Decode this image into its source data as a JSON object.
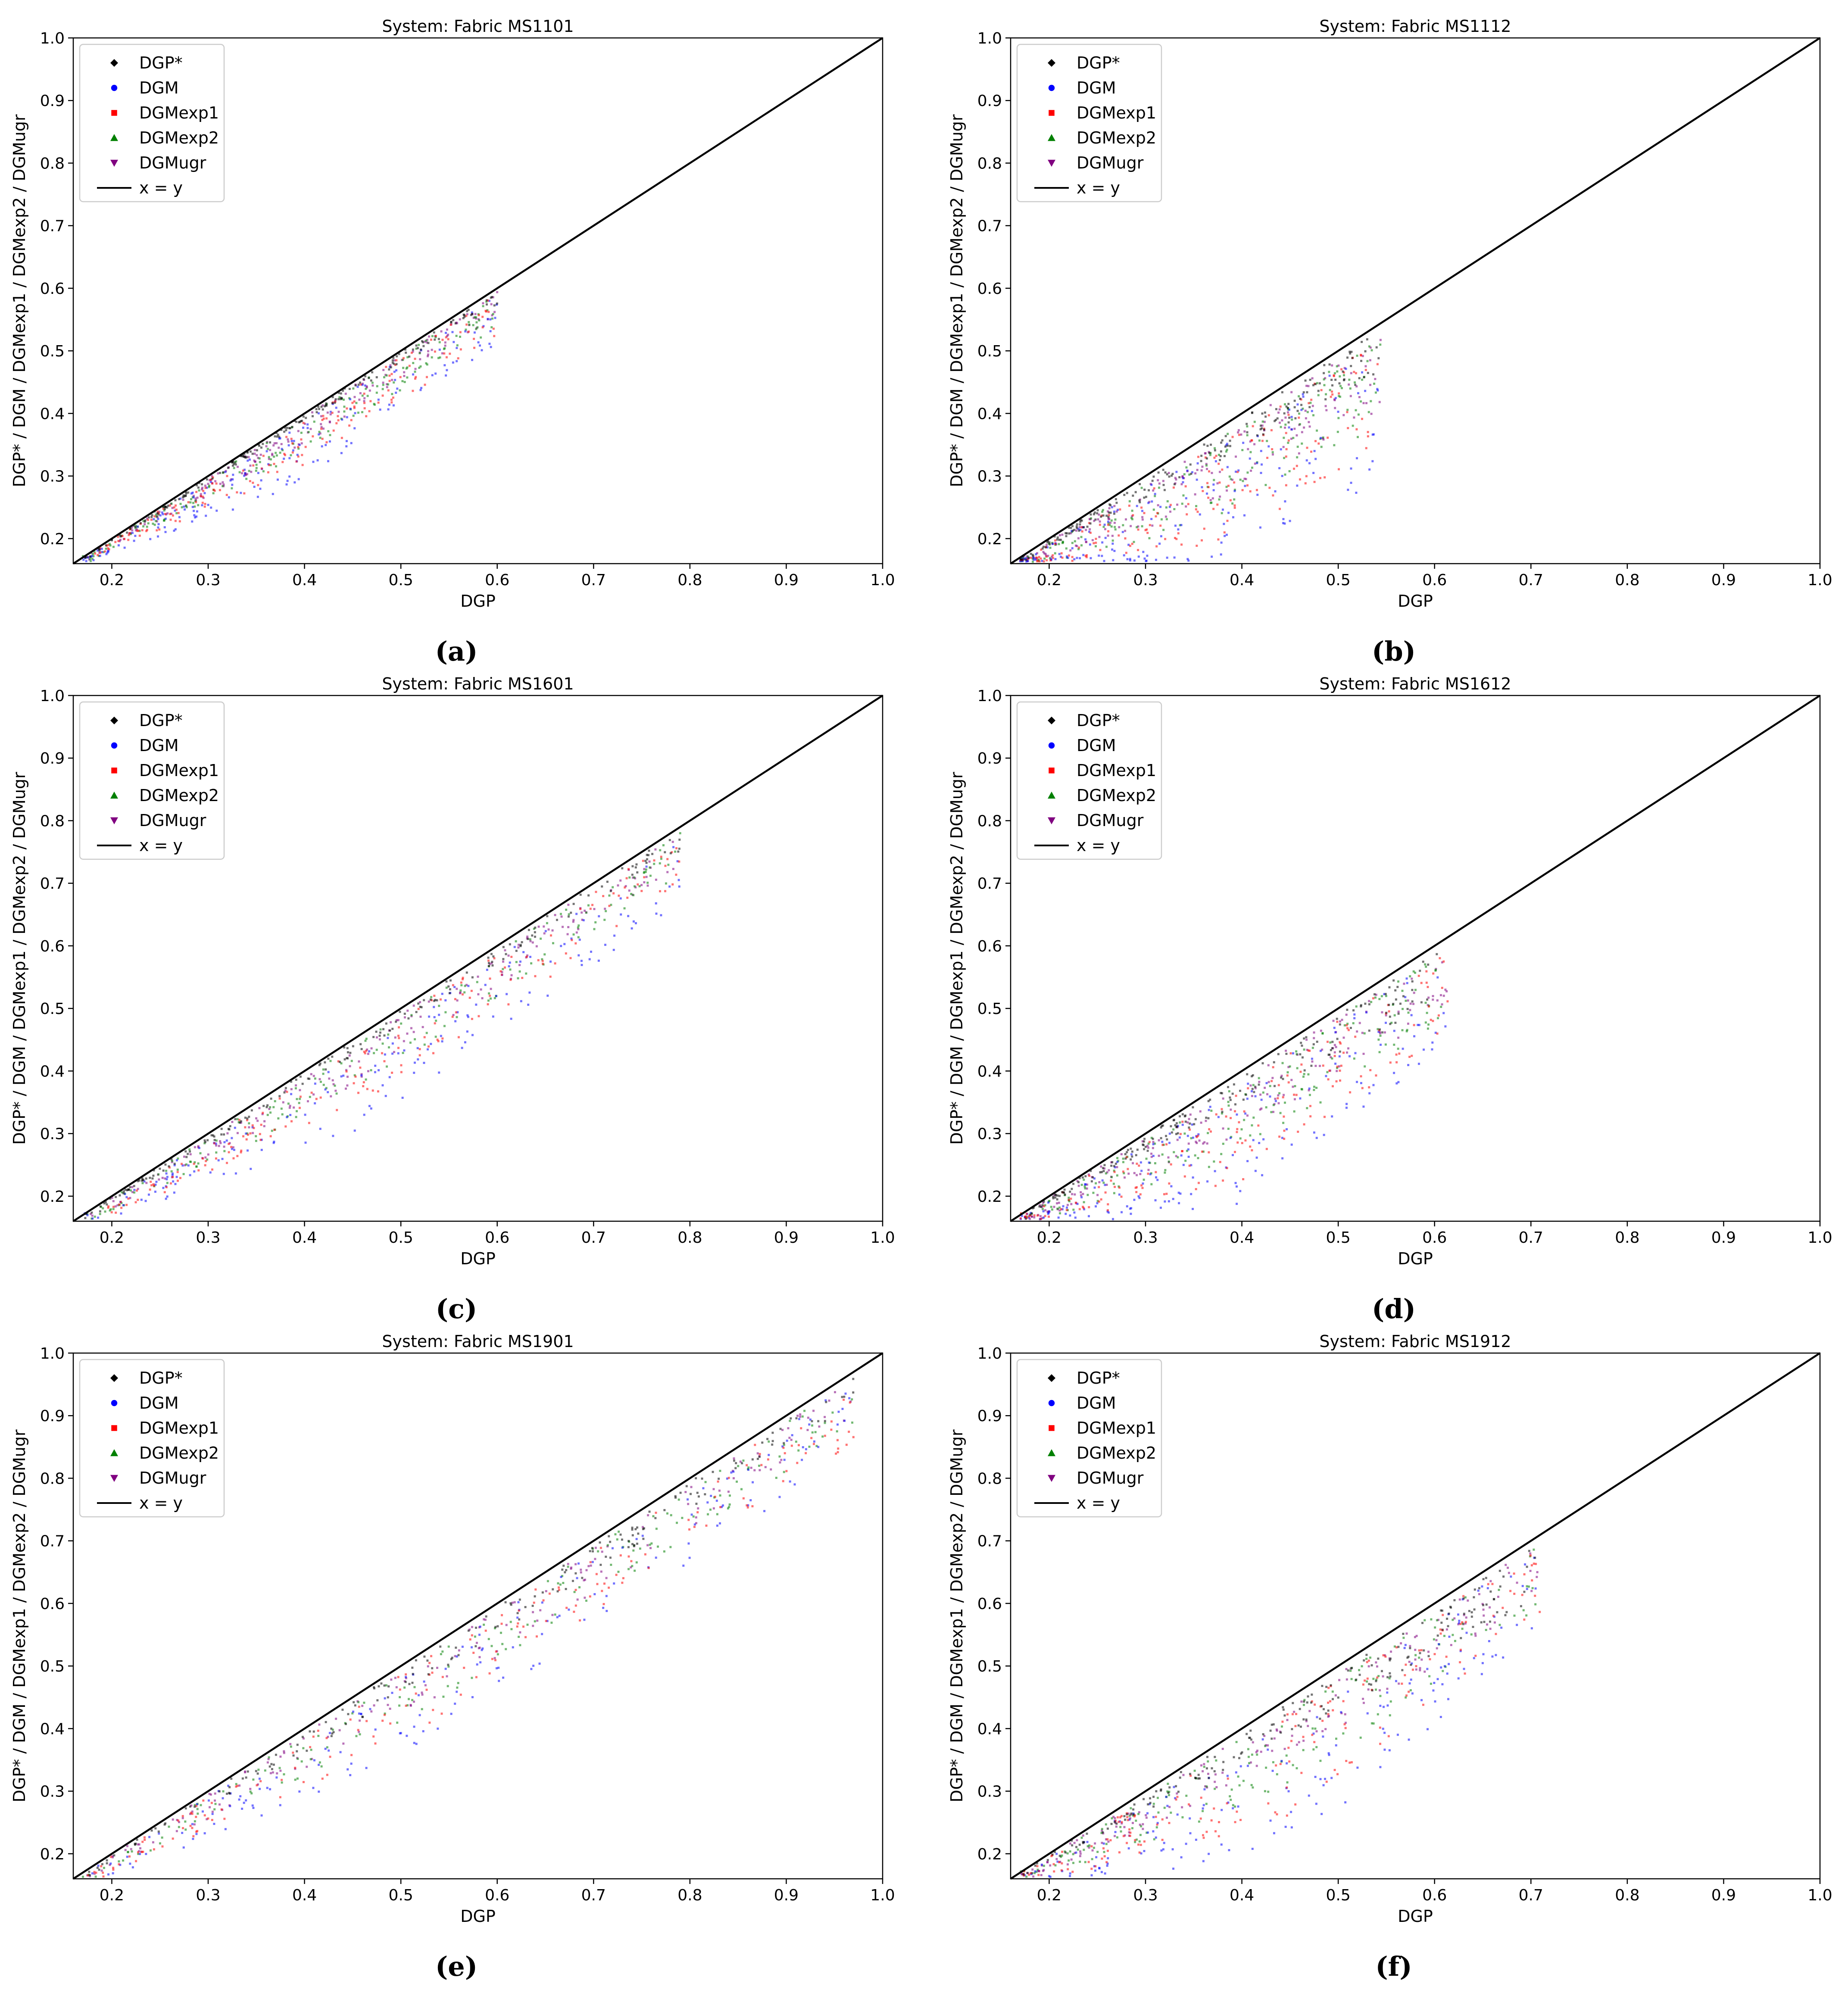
{
  "figure": {
    "x_axis_label": "DGP",
    "y_axis_label": "DGP* / DGM / DGMexp1 / DGMexp2 / DGMugr",
    "legend_entries": [
      {
        "label": "DGP*",
        "color": "#000000",
        "marker": "diamond"
      },
      {
        "label": "DGM",
        "color": "#0000ff",
        "marker": "circle"
      },
      {
        "label": "DGMexp1",
        "color": "#ff0000",
        "marker": "square"
      },
      {
        "label": "DGMexp2",
        "color": "#008000",
        "marker": "triangle-up"
      },
      {
        "label": "DGMugr",
        "color": "#800080",
        "marker": "triangle-down"
      },
      {
        "label": "x = y",
        "color": "#000000",
        "marker": "line"
      }
    ]
  },
  "chart_data": [
    {
      "type": "scatter",
      "title": "System: Fabric MS1101",
      "caption": "(a)",
      "xlabel": "DGP",
      "ylabel": "DGP* / DGM / DGMexp1 / DGMexp2 / DGMugr",
      "xlim": [
        0.16,
        1.0
      ],
      "ylim": [
        0.16,
        1.0
      ],
      "xticks": [
        "0.2",
        "0.3",
        "0.4",
        "0.5",
        "0.6",
        "0.7",
        "0.8",
        "0.9",
        "1.0"
      ],
      "yticks": [
        "0.2",
        "0.3",
        "0.4",
        "0.5",
        "0.6",
        "0.7",
        "0.8",
        "0.9",
        "1.0"
      ],
      "legend_position": "upper-left",
      "reference_line": "x = y",
      "dgp_max": 0.6,
      "series": [
        {
          "name": "DGP*",
          "gap_vs_dgp": [
            [
              0.2,
              0.005
            ],
            [
              0.4,
              0.01
            ],
            [
              0.6,
              0.02
            ]
          ]
        },
        {
          "name": "DGM",
          "gap_vs_dgp": [
            [
              0.2,
              0.02
            ],
            [
              0.4,
              0.09
            ],
            [
              0.6,
              0.07
            ]
          ]
        },
        {
          "name": "DGMexp1",
          "gap_vs_dgp": [
            [
              0.2,
              0.015
            ],
            [
              0.4,
              0.07
            ],
            [
              0.6,
              0.06
            ]
          ]
        },
        {
          "name": "DGMexp2",
          "gap_vs_dgp": [
            [
              0.2,
              0.012
            ],
            [
              0.4,
              0.05
            ],
            [
              0.6,
              0.05
            ]
          ]
        },
        {
          "name": "DGMugr",
          "gap_vs_dgp": [
            [
              0.2,
              0.01
            ],
            [
              0.4,
              0.04
            ],
            [
              0.6,
              0.04
            ]
          ]
        }
      ]
    },
    {
      "type": "scatter",
      "title": "System: Fabric MS1112",
      "caption": "(b)",
      "xlabel": "DGP",
      "ylabel": "DGP* / DGM / DGMexp1 / DGMexp2 / DGMugr",
      "xlim": [
        0.16,
        1.0
      ],
      "ylim": [
        0.16,
        1.0
      ],
      "xticks": [
        "0.2",
        "0.3",
        "0.4",
        "0.5",
        "0.6",
        "0.7",
        "0.8",
        "0.9",
        "1.0"
      ],
      "yticks": [
        "0.2",
        "0.3",
        "0.4",
        "0.5",
        "0.6",
        "0.7",
        "0.8",
        "0.9",
        "1.0"
      ],
      "legend_position": "upper-left",
      "reference_line": "x = y",
      "dgp_max": 0.545,
      "series": [
        {
          "name": "DGP*",
          "gap_vs_dgp": [
            [
              0.2,
              0.01
            ],
            [
              0.35,
              0.04
            ],
            [
              0.54,
              0.06
            ]
          ]
        },
        {
          "name": "DGM",
          "gap_vs_dgp": [
            [
              0.2,
              0.04
            ],
            [
              0.35,
              0.17
            ],
            [
              0.54,
              0.2
            ]
          ]
        },
        {
          "name": "DGMexp1",
          "gap_vs_dgp": [
            [
              0.2,
              0.035
            ],
            [
              0.35,
              0.14
            ],
            [
              0.54,
              0.17
            ]
          ]
        },
        {
          "name": "DGMexp2",
          "gap_vs_dgp": [
            [
              0.2,
              0.03
            ],
            [
              0.35,
              0.11
            ],
            [
              0.54,
              0.13
            ]
          ]
        },
        {
          "name": "DGMugr",
          "gap_vs_dgp": [
            [
              0.2,
              0.025
            ],
            [
              0.35,
              0.09
            ],
            [
              0.54,
              0.11
            ]
          ]
        }
      ]
    },
    {
      "type": "scatter",
      "title": "System: Fabric MS1601",
      "caption": "(c)",
      "xlabel": "DGP",
      "ylabel": "DGP* / DGM / DGMexp1 / DGMexp2 / DGMugr",
      "xlim": [
        0.16,
        1.0
      ],
      "ylim": [
        0.16,
        1.0
      ],
      "xticks": [
        "0.2",
        "0.3",
        "0.4",
        "0.5",
        "0.6",
        "0.7",
        "0.8",
        "0.9",
        "1.0"
      ],
      "yticks": [
        "0.2",
        "0.3",
        "0.4",
        "0.5",
        "0.6",
        "0.7",
        "0.8",
        "0.9",
        "1.0"
      ],
      "legend_position": "upper-left",
      "reference_line": "x = y",
      "dgp_max": 0.79,
      "series": [
        {
          "name": "DGP*",
          "gap_vs_dgp": [
            [
              0.2,
              0.01
            ],
            [
              0.45,
              0.02
            ],
            [
              0.79,
              0.03
            ]
          ]
        },
        {
          "name": "DGM",
          "gap_vs_dgp": [
            [
              0.2,
              0.03
            ],
            [
              0.45,
              0.12
            ],
            [
              0.79,
              0.1
            ]
          ]
        },
        {
          "name": "DGMexp1",
          "gap_vs_dgp": [
            [
              0.2,
              0.025
            ],
            [
              0.45,
              0.09
            ],
            [
              0.79,
              0.08
            ]
          ]
        },
        {
          "name": "DGMexp2",
          "gap_vs_dgp": [
            [
              0.2,
              0.02
            ],
            [
              0.45,
              0.07
            ],
            [
              0.79,
              0.06
            ]
          ]
        },
        {
          "name": "DGMugr",
          "gap_vs_dgp": [
            [
              0.2,
              0.02
            ],
            [
              0.45,
              0.06
            ],
            [
              0.79,
              0.05
            ]
          ]
        }
      ]
    },
    {
      "type": "scatter",
      "title": "System: Fabric MS1612",
      "caption": "(d)",
      "xlabel": "DGP",
      "ylabel": "DGP* / DGM / DGMexp1 / DGMexp2 / DGMugr",
      "xlim": [
        0.16,
        1.0
      ],
      "ylim": [
        0.16,
        1.0
      ],
      "xticks": [
        "0.2",
        "0.3",
        "0.4",
        "0.5",
        "0.6",
        "0.7",
        "0.8",
        "0.9",
        "1.0"
      ],
      "yticks": [
        "0.2",
        "0.3",
        "0.4",
        "0.5",
        "0.6",
        "0.7",
        "0.8",
        "0.9",
        "1.0"
      ],
      "legend_position": "upper-left",
      "reference_line": "x = y",
      "dgp_max": 0.615,
      "series": [
        {
          "name": "DGP*",
          "gap_vs_dgp": [
            [
              0.2,
              0.01
            ],
            [
              0.4,
              0.04
            ],
            [
              0.61,
              0.08
            ]
          ]
        },
        {
          "name": "DGM",
          "gap_vs_dgp": [
            [
              0.2,
              0.04
            ],
            [
              0.4,
              0.17
            ],
            [
              0.61,
              0.14
            ]
          ]
        },
        {
          "name": "DGMexp1",
          "gap_vs_dgp": [
            [
              0.2,
              0.035
            ],
            [
              0.4,
              0.14
            ],
            [
              0.61,
              0.12
            ]
          ]
        },
        {
          "name": "DGMexp2",
          "gap_vs_dgp": [
            [
              0.2,
              0.03
            ],
            [
              0.4,
              0.11
            ],
            [
              0.61,
              0.1
            ]
          ]
        },
        {
          "name": "DGMugr",
          "gap_vs_dgp": [
            [
              0.2,
              0.025
            ],
            [
              0.4,
              0.08
            ],
            [
              0.61,
              0.09
            ]
          ]
        }
      ]
    },
    {
      "type": "scatter",
      "title": "System: Fabric MS1901",
      "caption": "(e)",
      "xlabel": "DGP",
      "ylabel": "DGP* / DGM / DGMexp1 / DGMexp2 / DGMugr",
      "xlim": [
        0.16,
        1.0
      ],
      "ylim": [
        0.16,
        1.0
      ],
      "xticks": [
        "0.2",
        "0.3",
        "0.4",
        "0.5",
        "0.6",
        "0.7",
        "0.8",
        "0.9",
        "1.0"
      ],
      "yticks": [
        "0.2",
        "0.3",
        "0.4",
        "0.5",
        "0.6",
        "0.7",
        "0.8",
        "0.9",
        "1.0"
      ],
      "legend_position": "upper-left",
      "reference_line": "x = y",
      "dgp_max": 0.97,
      "series": [
        {
          "name": "DGP*",
          "gap_vs_dgp": [
            [
              0.2,
              0.01
            ],
            [
              0.5,
              0.04
            ],
            [
              0.97,
              0.04
            ]
          ]
        },
        {
          "name": "DGM",
          "gap_vs_dgp": [
            [
              0.2,
              0.03
            ],
            [
              0.5,
              0.12
            ],
            [
              0.97,
              0.1
            ]
          ]
        },
        {
          "name": "DGMexp1",
          "gap_vs_dgp": [
            [
              0.2,
              0.025
            ],
            [
              0.5,
              0.1
            ],
            [
              0.97,
              0.09
            ]
          ]
        },
        {
          "name": "DGMexp2",
          "gap_vs_dgp": [
            [
              0.2,
              0.02
            ],
            [
              0.5,
              0.08
            ],
            [
              0.97,
              0.07
            ]
          ]
        },
        {
          "name": "DGMugr",
          "gap_vs_dgp": [
            [
              0.2,
              0.02
            ],
            [
              0.5,
              0.07
            ],
            [
              0.97,
              0.06
            ]
          ]
        }
      ]
    },
    {
      "type": "scatter",
      "title": "System: Fabric MS1912",
      "caption": "(f)",
      "xlabel": "DGP",
      "ylabel": "DGP* / DGM / DGMexp1 / DGMexp2 / DGMugr",
      "xlim": [
        0.16,
        1.0
      ],
      "ylim": [
        0.16,
        1.0
      ],
      "xticks": [
        "0.2",
        "0.3",
        "0.4",
        "0.5",
        "0.6",
        "0.7",
        "0.8",
        "0.9",
        "1.0"
      ],
      "yticks": [
        "0.2",
        "0.3",
        "0.4",
        "0.5",
        "0.6",
        "0.7",
        "0.8",
        "0.9",
        "1.0"
      ],
      "legend_position": "upper-left",
      "reference_line": "x = y",
      "dgp_max": 0.71,
      "series": [
        {
          "name": "DGP*",
          "gap_vs_dgp": [
            [
              0.2,
              0.01
            ],
            [
              0.45,
              0.05
            ],
            [
              0.71,
              0.08
            ]
          ]
        },
        {
          "name": "DGM",
          "gap_vs_dgp": [
            [
              0.2,
              0.04
            ],
            [
              0.45,
              0.2
            ],
            [
              0.71,
              0.12
            ]
          ]
        },
        {
          "name": "DGMexp1",
          "gap_vs_dgp": [
            [
              0.2,
              0.035
            ],
            [
              0.45,
              0.16
            ],
            [
              0.71,
              0.1
            ]
          ]
        },
        {
          "name": "DGMexp2",
          "gap_vs_dgp": [
            [
              0.2,
              0.03
            ],
            [
              0.45,
              0.12
            ],
            [
              0.71,
              0.09
            ]
          ]
        },
        {
          "name": "DGMugr",
          "gap_vs_dgp": [
            [
              0.2,
              0.025
            ],
            [
              0.45,
              0.08
            ],
            [
              0.71,
              0.08
            ]
          ]
        }
      ]
    }
  ]
}
